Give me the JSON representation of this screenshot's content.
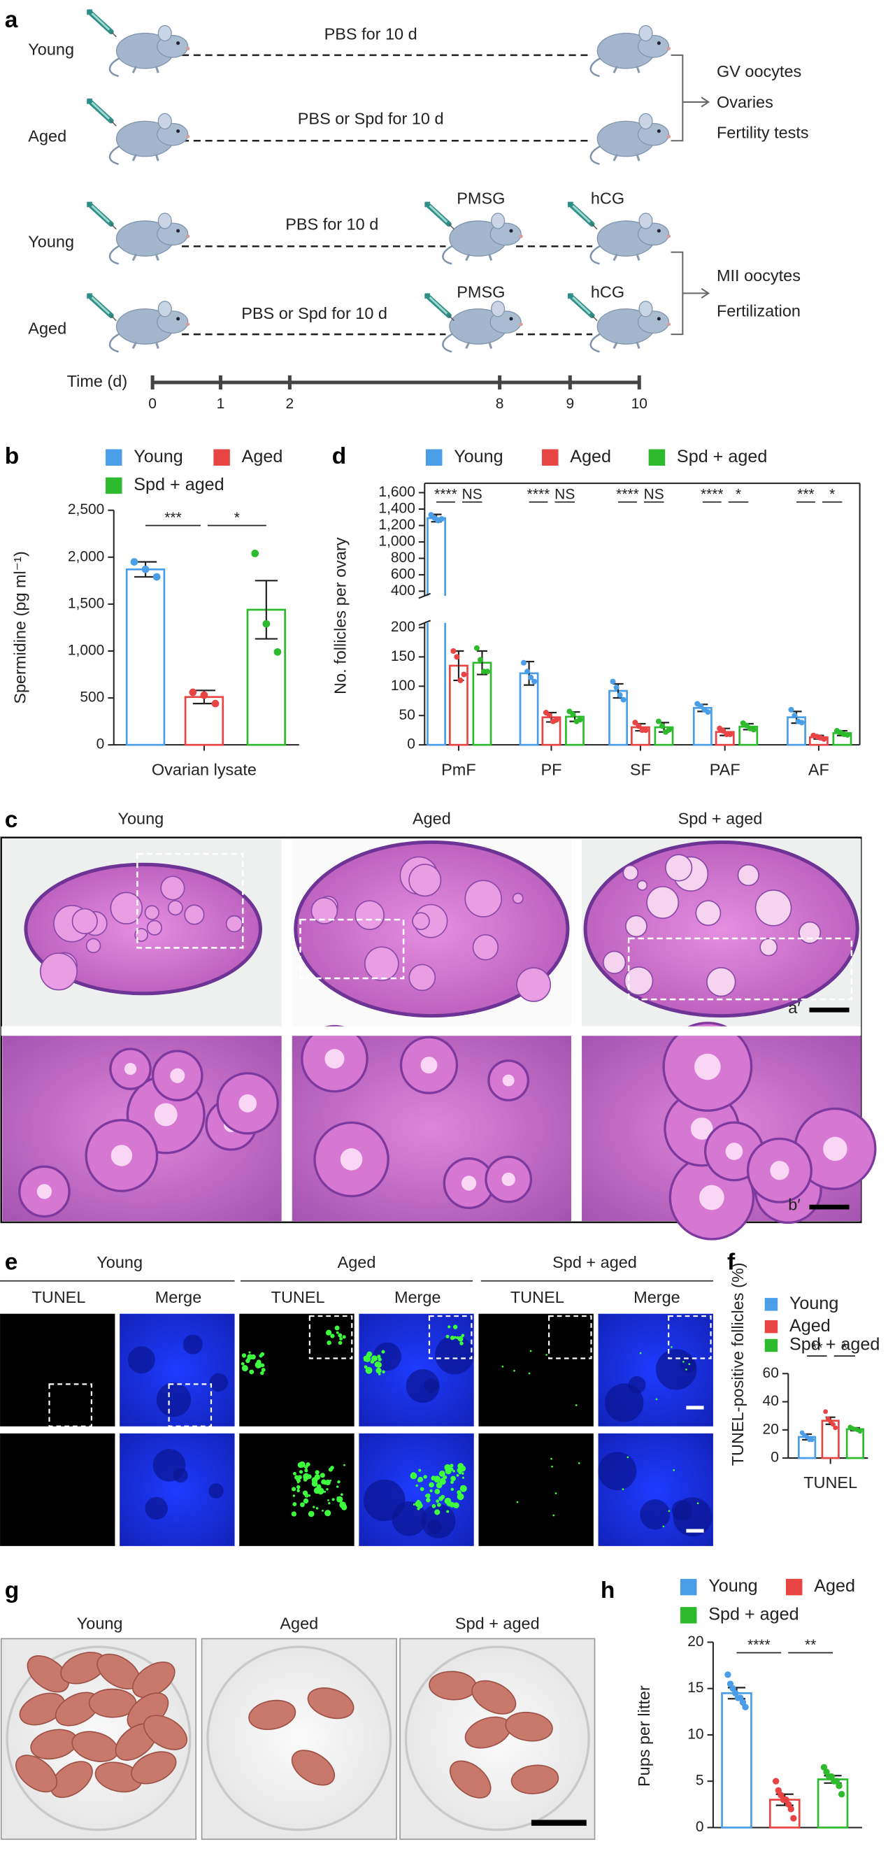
{
  "figure": {
    "panel_a": {
      "label": "a",
      "rows": [
        {
          "group": "Young",
          "treatment": "PBS for 10 d"
        },
        {
          "group": "Aged",
          "treatment": "PBS or Spd for 10 d"
        },
        {
          "group": "Young",
          "treatment": "PBS for 10 d",
          "injections": [
            "PMSG",
            "hCG"
          ]
        },
        {
          "group": "Aged",
          "treatment": "PBS or Spd for 10 d",
          "injections": [
            "PMSG",
            "hCG"
          ]
        }
      ],
      "outcomes": [
        [
          "GV oocytes",
          "Ovaries",
          "Fertility tests"
        ],
        [
          "MII oocytes",
          "Fertilization"
        ]
      ],
      "timeline": {
        "label": "Time (d)",
        "ticks": [
          0,
          1,
          2,
          8,
          9,
          10
        ]
      }
    },
    "panel_c": {
      "label": "c",
      "columns": [
        "Young",
        "Aged",
        "Spd + aged"
      ],
      "scale_labels": [
        "a′",
        "b′"
      ]
    },
    "panel_e": {
      "label": "e",
      "groups": [
        "Young",
        "Aged",
        "Spd + aged"
      ],
      "channels": [
        "TUNEL",
        "Merge",
        "TUNEL",
        "Merge",
        "TUNEL",
        "Merge"
      ]
    },
    "panel_g": {
      "label": "g",
      "columns": [
        "Young",
        "Aged",
        "Spd + aged"
      ]
    }
  },
  "chart_data": [
    {
      "panel_label": "b",
      "type": "bar",
      "categories": [
        "Ovarian lysate"
      ],
      "ylabel": "Spermidine (pg ml⁻¹)",
      "ylim": [
        0,
        2500
      ],
      "yticks": [
        0,
        500,
        {
          "value": 1000,
          "label": "1,000"
        },
        {
          "value": 1500,
          "label": "1,500"
        },
        {
          "value": 2000,
          "label": "2,000"
        },
        {
          "value": 2500,
          "label": "2,500"
        }
      ],
      "series": [
        {
          "name": "Young",
          "color": "#4a9ee8",
          "values": [
            1870
          ],
          "errors": [
            80
          ],
          "points": [
            [
              1950,
              1870,
              1790
            ]
          ]
        },
        {
          "name": "Aged",
          "color": "#e84444",
          "values": [
            510
          ],
          "errors": [
            70
          ],
          "points": [
            [
              560,
              530,
              440
            ]
          ]
        },
        {
          "name": "Spd + aged",
          "color": "#2dbb2d",
          "values": [
            1440
          ],
          "errors": [
            310
          ],
          "points": [
            [
              2040,
              1290,
              990
            ]
          ]
        }
      ],
      "annotations": [
        [
          "***",
          "*"
        ]
      ]
    },
    {
      "panel_label": "d",
      "type": "bar",
      "categories": [
        "PmF",
        "PF",
        "SF",
        "PAF",
        "AF"
      ],
      "ylabel": "No. follicles per ovary",
      "ylim": [
        0,
        1600
      ],
      "axis_break": [
        200,
        400
      ],
      "yticks": [
        0,
        50,
        100,
        150,
        200,
        400,
        600,
        800,
        {
          "value": 1000,
          "label": "1,000"
        },
        {
          "value": 1200,
          "label": "1,200"
        },
        {
          "value": 1400,
          "label": "1,400"
        },
        {
          "value": 1600,
          "label": "1,600"
        }
      ],
      "series": [
        {
          "name": "Young",
          "color": "#4a9ee8",
          "values": [
            1290,
            122,
            92,
            63,
            47
          ],
          "errors": [
            45,
            20,
            12,
            6,
            10
          ],
          "points": [
            [
              1330,
              1290,
              1260,
              1280
            ],
            [
              140,
              125,
              115,
              108
            ],
            [
              108,
              98,
              85,
              77
            ],
            [
              70,
              66,
              60,
              56
            ],
            [
              60,
              50,
              40,
              38
            ]
          ]
        },
        {
          "name": "Aged",
          "color": "#e84444",
          "values": [
            135,
            47,
            30,
            22,
            13
          ],
          "errors": [
            25,
            8,
            6,
            6,
            3
          ],
          "points": [
            [
              160,
              150,
              110,
              120
            ],
            [
              55,
              50,
              40,
              43
            ],
            [
              38,
              32,
              25,
              25
            ],
            [
              28,
              24,
              18,
              18
            ],
            [
              16,
              14,
              12,
              10
            ]
          ]
        },
        {
          "name": "Spd + aged",
          "color": "#2dbb2d",
          "values": [
            140,
            48,
            30,
            31,
            20
          ],
          "errors": [
            20,
            8,
            8,
            5,
            4
          ],
          "points": [
            [
              165,
              145,
              125,
              125
            ],
            [
              57,
              52,
              40,
              43
            ],
            [
              40,
              32,
              22,
              26
            ],
            [
              37,
              33,
              28,
              26
            ],
            [
              24,
              21,
              18,
              17
            ]
          ]
        }
      ],
      "annotations": [
        [
          "****",
          "NS"
        ],
        [
          "****",
          "NS"
        ],
        [
          "****",
          "NS"
        ],
        [
          "****",
          "*"
        ],
        [
          "***",
          "*"
        ]
      ]
    },
    {
      "panel_label": "f",
      "type": "bar",
      "categories": [
        "TUNEL"
      ],
      "ylabel": "TUNEL-positive follicles (%)",
      "ylim": [
        0,
        60
      ],
      "yticks": [
        0,
        20,
        40,
        60
      ],
      "series": [
        {
          "name": "Young",
          "color": "#4a9ee8",
          "values": [
            15
          ],
          "errors": [
            2
          ],
          "points": [
            [
              18,
              16,
              15,
              13,
              13
            ]
          ]
        },
        {
          "name": "Aged",
          "color": "#e84444",
          "values": [
            26.5
          ],
          "errors": [
            2.5
          ],
          "points": [
            [
              33,
              28,
              26,
              24,
              21.5
            ]
          ]
        },
        {
          "name": "Spd + aged",
          "color": "#2dbb2d",
          "values": [
            20.5
          ],
          "errors": [
            1
          ],
          "points": [
            [
              22,
              21,
              20.5,
              20,
              19
            ]
          ]
        }
      ],
      "annotations": [
        [
          "**",
          "*"
        ]
      ]
    },
    {
      "panel_label": "h",
      "type": "bar",
      "categories": [
        null
      ],
      "ylabel": "Pups per litter",
      "ylim": [
        0,
        20
      ],
      "yticks": [
        0,
        5,
        10,
        15,
        20
      ],
      "series": [
        {
          "name": "Young",
          "color": "#4a9ee8",
          "values": [
            14.5
          ],
          "errors": [
            0.6
          ],
          "points": [
            [
              16.5,
              15.5,
              15,
              14.5,
              14,
              14,
              13.5,
              13
            ]
          ]
        },
        {
          "name": "Aged",
          "color": "#e84444",
          "values": [
            3
          ],
          "errors": [
            0.6
          ],
          "points": [
            [
              5,
              4,
              3.5,
              3,
              3,
              2.5,
              2,
              1
            ]
          ]
        },
        {
          "name": "Spd + aged",
          "color": "#2dbb2d",
          "values": [
            5.2
          ],
          "errors": [
            0.4
          ],
          "points": [
            [
              6.5,
              6,
              5.5,
              5.5,
              5,
              5,
              4.5,
              3.6
            ]
          ]
        }
      ],
      "annotations": [
        [
          "****",
          "**"
        ]
      ]
    }
  ]
}
